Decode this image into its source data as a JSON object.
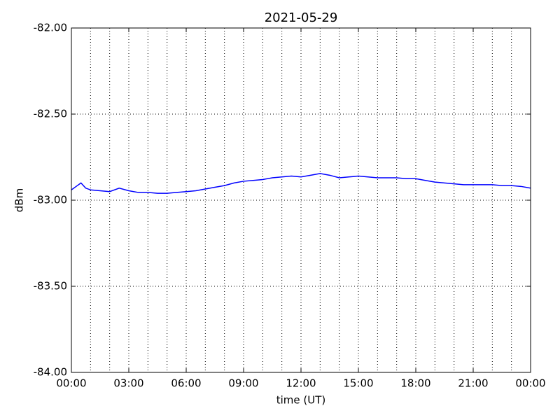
{
  "chart_data": {
    "type": "line",
    "title": "2021-05-29",
    "xlabel": "time (UT)",
    "ylabel": "dBm",
    "x": [
      0,
      0.25,
      0.5,
      0.75,
      1,
      1.5,
      2,
      2.5,
      3,
      3.5,
      4,
      4.5,
      5,
      5.5,
      6,
      6.5,
      7,
      7.5,
      8,
      8.5,
      9,
      9.5,
      10,
      10.5,
      11,
      11.5,
      12,
      12.5,
      13,
      13.5,
      14,
      14.5,
      15,
      15.5,
      16,
      16.5,
      17,
      17.5,
      18,
      18.5,
      19,
      19.5,
      20,
      20.5,
      21,
      21.5,
      22,
      22.5,
      23,
      23.5,
      24
    ],
    "series": [
      {
        "name": "dBm",
        "color": "#0000ff",
        "values": [
          -82.94,
          -82.92,
          -82.9,
          -82.93,
          -82.94,
          -82.945,
          -82.95,
          -82.93,
          -82.945,
          -82.955,
          -82.955,
          -82.96,
          -82.96,
          -82.955,
          -82.95,
          -82.945,
          -82.935,
          -82.925,
          -82.915,
          -82.9,
          -82.89,
          -82.885,
          -82.88,
          -82.87,
          -82.865,
          -82.86,
          -82.865,
          -82.855,
          -82.845,
          -82.855,
          -82.87,
          -82.865,
          -82.86,
          -82.865,
          -82.87,
          -82.87,
          -82.87,
          -82.875,
          -82.875,
          -82.885,
          -82.895,
          -82.9,
          -82.905,
          -82.91,
          -82.91,
          -82.91,
          -82.91,
          -82.915,
          -82.915,
          -82.92,
          -82.93
        ]
      }
    ],
    "xlim": [
      0,
      24
    ],
    "ylim": [
      -84,
      -82
    ],
    "xticks": [
      {
        "value": 0,
        "label": "00:00"
      },
      {
        "value": 3,
        "label": "03:00"
      },
      {
        "value": 6,
        "label": "06:00"
      },
      {
        "value": 9,
        "label": "09:00"
      },
      {
        "value": 12,
        "label": "12:00"
      },
      {
        "value": 15,
        "label": "15:00"
      },
      {
        "value": 18,
        "label": "18:00"
      },
      {
        "value": 21,
        "label": "21:00"
      },
      {
        "value": 24,
        "label": "00:00"
      }
    ],
    "xminorticks": [
      1,
      2,
      4,
      5,
      7,
      8,
      10,
      11,
      13,
      14,
      16,
      17,
      19,
      20,
      22,
      23
    ],
    "yticks": [
      {
        "value": -84,
        "label": "-84.00"
      },
      {
        "value": -83.5,
        "label": "-83.50"
      },
      {
        "value": -83,
        "label": "-83.00"
      },
      {
        "value": -82.5,
        "label": "-82.50"
      },
      {
        "value": -82,
        "label": "-82.00"
      }
    ],
    "grid": true
  }
}
